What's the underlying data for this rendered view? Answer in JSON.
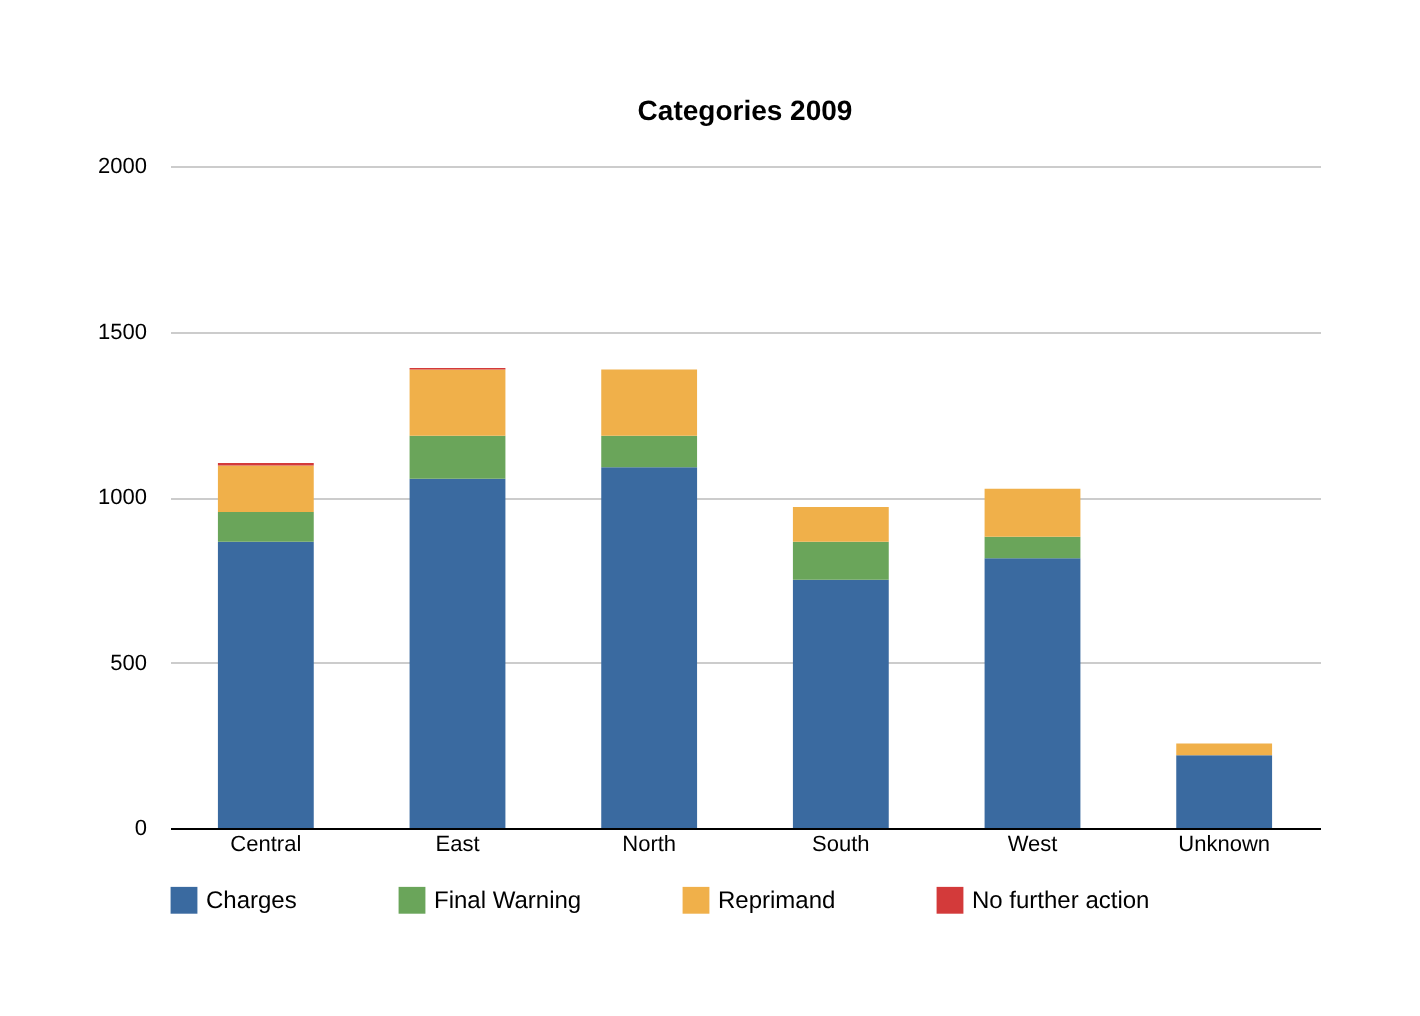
{
  "chart_data": {
    "type": "bar",
    "title": "Categories 2009",
    "stacked": true,
    "grid": "y",
    "legend": "bottom",
    "categories": [
      "Central",
      "East",
      "North",
      "South",
      "West",
      "Unknown"
    ],
    "series": [
      {
        "name": "Charges",
        "color": "#3a6aa0",
        "values": [
          865,
          1055,
          1090,
          750,
          815,
          220
        ]
      },
      {
        "name": "Final Warning",
        "color": "#6aa55a",
        "values": [
          90,
          130,
          95,
          115,
          65,
          null
        ]
      },
      {
        "name": "Reprimand",
        "color": "#f0b04a",
        "values": [
          140,
          200,
          200,
          105,
          145,
          35
        ]
      },
      {
        "name": "No further action",
        "color": "#d33a3a",
        "values": [
          8,
          5,
          null,
          null,
          null,
          null
        ]
      }
    ],
    "ylim": [
      0,
      2000
    ],
    "yticks": [
      0,
      500,
      1000,
      1500,
      2000
    ]
  }
}
